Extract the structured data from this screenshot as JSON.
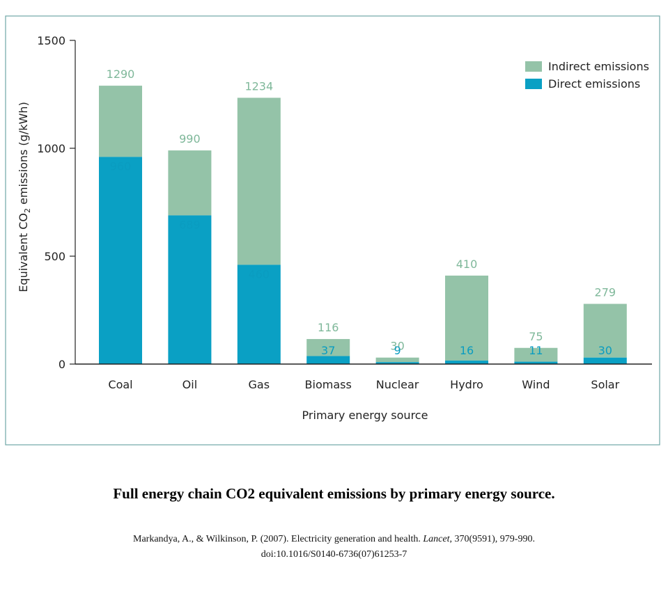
{
  "colors": {
    "frame": "#6fa6a6",
    "indirect": "#94c3a8",
    "direct": "#0aa0c4",
    "indirect_label": "#7fb89a",
    "direct_label": "#0a9cc0",
    "axis": "#222222"
  },
  "chart_data": {
    "type": "bar",
    "stacked": true,
    "categories": [
      "Coal",
      "Oil",
      "Gas",
      "Biomass",
      "Nuclear",
      "Hydro",
      "Wind",
      "Solar"
    ],
    "series": [
      {
        "name": "Direct emissions",
        "values": [
          960,
          689,
          460,
          37,
          9,
          16,
          11,
          30
        ]
      },
      {
        "name": "Indirect emissions",
        "values": [
          330,
          301,
          774,
          79,
          21,
          394,
          64,
          249
        ]
      }
    ],
    "totals": [
      1290,
      990,
      1234,
      116,
      30,
      410,
      75,
      279
    ],
    "xlabel": "Primary energy source",
    "ylabel_prefix": "Equivalent CO",
    "ylabel_sub": "2",
    "ylabel_suffix": " emissions (g/kWh)",
    "yticks": [
      "0",
      "500",
      "1000",
      "1500"
    ],
    "ylim": [
      0,
      1500
    ],
    "legend": [
      "Indirect emissions",
      "Direct emissions"
    ],
    "legend_position": "top-right"
  },
  "caption": {
    "title": "Full energy chain CO2 equivalent emissions by primary energy source.",
    "citation_authors": "Markandya, A., & Wilkinson, P. (2007). Electricity generation and health. ",
    "citation_journal": "Lancet",
    "citation_rest": ", 370(9591), 979-990.",
    "citation_doi": "doi:10.1016/S0140-6736(07)61253-7"
  }
}
